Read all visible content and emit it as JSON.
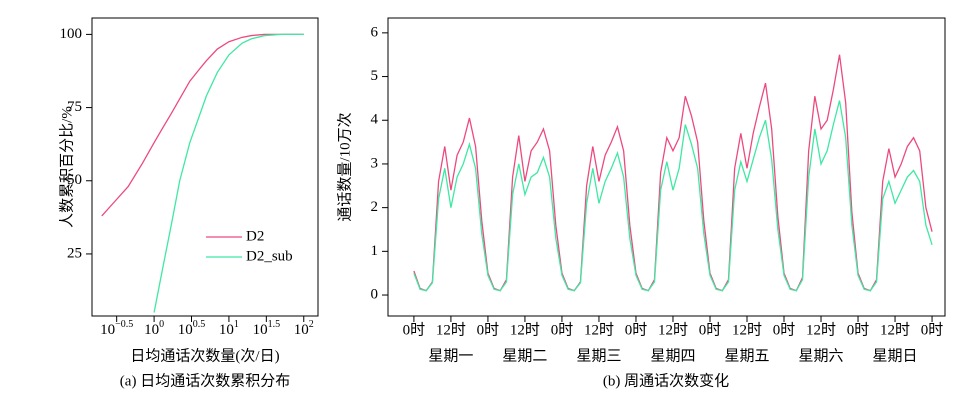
{
  "chart_data": [
    {
      "type": "line",
      "xscale": "log",
      "x_label": "日均通话次数量(次/日)",
      "y_label": "人数累积百分比/%",
      "caption": "(a) 日均通话次数累积分布",
      "x": [
        0.2,
        0.3,
        0.45,
        0.7,
        1,
        1.3,
        1.7,
        2.2,
        3,
        4,
        5,
        7,
        10,
        15,
        20,
        30,
        50,
        100
      ],
      "series": [
        {
          "name": "D2",
          "color": "#ec4a7e",
          "values": [
            38,
            43,
            48,
            56,
            63,
            68,
            73,
            78,
            84,
            88,
            91,
            95,
            97.5,
            99,
            99.6,
            100,
            100,
            100
          ]
        },
        {
          "name": "D2_sub",
          "color": "#3fe8a3",
          "values": [
            null,
            null,
            null,
            null,
            5,
            20,
            35,
            50,
            63,
            72,
            79,
            87,
            93,
            97,
            98.5,
            99.6,
            100,
            100
          ]
        }
      ],
      "xlim": [
        0.148,
        155
      ],
      "ylim": [
        3.8,
        105.6
      ],
      "xticks": [
        {
          "value": 0.3162,
          "label": "10^−0.5"
        },
        {
          "value": 1,
          "label": "10^0"
        },
        {
          "value": 3.162,
          "label": "10^0.5"
        },
        {
          "value": 10,
          "label": "10^1"
        },
        {
          "value": 31.62,
          "label": "10^1.5"
        },
        {
          "value": 100,
          "label": "10^2"
        }
      ],
      "yticks": [
        25,
        50,
        75,
        100
      ],
      "legend": "center right",
      "grid": false
    },
    {
      "type": "line",
      "y_label": "通话数量/10万次",
      "caption": "(b) 周通话次数变化",
      "x": [
        0,
        2,
        4,
        6,
        8,
        10,
        12,
        14,
        16,
        18,
        20,
        22,
        24,
        26,
        28,
        30,
        32,
        34,
        36,
        38,
        40,
        42,
        44,
        46,
        48,
        50,
        52,
        54,
        56,
        58,
        60,
        62,
        64,
        66,
        68,
        70,
        72,
        74,
        76,
        78,
        80,
        82,
        84,
        86,
        88,
        90,
        92,
        94,
        96,
        98,
        100,
        102,
        104,
        106,
        108,
        110,
        112,
        114,
        116,
        118,
        120,
        122,
        124,
        126,
        128,
        130,
        132,
        134,
        136,
        138,
        140,
        142,
        144,
        146,
        148,
        150,
        152,
        154,
        156,
        158,
        160,
        162,
        164,
        166,
        168
      ],
      "series": [
        {
          "name": "pink",
          "color": "#ec4a7e",
          "values": [
            0.55,
            0.15,
            0.1,
            0.3,
            2.6,
            3.4,
            2.4,
            3.2,
            3.5,
            4.05,
            3.4,
            1.7,
            0.5,
            0.15,
            0.1,
            0.35,
            2.7,
            3.65,
            2.6,
            3.3,
            3.5,
            3.8,
            3.3,
            1.6,
            0.5,
            0.15,
            0.1,
            0.3,
            2.5,
            3.4,
            2.6,
            3.2,
            3.5,
            3.85,
            3.3,
            1.6,
            0.5,
            0.15,
            0.1,
            0.35,
            2.8,
            3.6,
            3.3,
            3.6,
            4.55,
            4.1,
            3.5,
            1.7,
            0.5,
            0.15,
            0.1,
            0.35,
            2.9,
            3.7,
            2.9,
            3.7,
            4.3,
            4.85,
            3.8,
            1.8,
            0.5,
            0.15,
            0.1,
            0.4,
            3.3,
            4.55,
            3.8,
            4.0,
            4.7,
            5.5,
            4.4,
            1.9,
            0.5,
            0.15,
            0.1,
            0.35,
            2.6,
            3.35,
            2.7,
            3.0,
            3.4,
            3.6,
            3.3,
            2.0,
            1.45
          ]
        },
        {
          "name": "green",
          "color": "#3fe8a3",
          "values": [
            0.5,
            0.13,
            0.1,
            0.28,
            2.2,
            2.9,
            2.0,
            2.7,
            3.0,
            3.45,
            2.9,
            1.4,
            0.45,
            0.13,
            0.1,
            0.3,
            2.3,
            3.0,
            2.3,
            2.7,
            2.8,
            3.15,
            2.7,
            1.3,
            0.45,
            0.13,
            0.1,
            0.28,
            2.1,
            2.9,
            2.1,
            2.6,
            2.9,
            3.25,
            2.7,
            1.3,
            0.45,
            0.13,
            0.1,
            0.3,
            2.4,
            3.05,
            2.4,
            2.9,
            3.9,
            3.45,
            2.9,
            1.4,
            0.45,
            0.13,
            0.1,
            0.3,
            2.4,
            3.05,
            2.6,
            3.1,
            3.6,
            4.0,
            3.1,
            1.5,
            0.45,
            0.13,
            0.1,
            0.35,
            2.7,
            3.8,
            3.0,
            3.3,
            3.9,
            4.45,
            3.6,
            1.6,
            0.45,
            0.13,
            0.1,
            0.3,
            2.2,
            2.6,
            2.1,
            2.4,
            2.7,
            2.85,
            2.6,
            1.6,
            1.15
          ]
        }
      ],
      "xlim": [
        -8.4,
        172.2
      ],
      "ylim": [
        -0.48,
        6.34
      ],
      "xticks": [
        {
          "value": 0,
          "label": "0时"
        },
        {
          "value": 12,
          "label": "12时"
        },
        {
          "value": 24,
          "label": "0时"
        },
        {
          "value": 36,
          "label": "12时"
        },
        {
          "value": 48,
          "label": "0时"
        },
        {
          "value": 60,
          "label": "12时"
        },
        {
          "value": 72,
          "label": "0时"
        },
        {
          "value": 84,
          "label": "12时"
        },
        {
          "value": 96,
          "label": "0时"
        },
        {
          "value": 108,
          "label": "12时"
        },
        {
          "value": 120,
          "label": "0时"
        },
        {
          "value": 132,
          "label": "12时"
        },
        {
          "value": 144,
          "label": "0时"
        },
        {
          "value": 156,
          "label": "12时"
        },
        {
          "value": 168,
          "label": "0时"
        }
      ],
      "xticks2": [
        {
          "value": 12,
          "label": "星期一"
        },
        {
          "value": 36,
          "label": "星期二"
        },
        {
          "value": 60,
          "label": "星期三"
        },
        {
          "value": 84,
          "label": "星期四"
        },
        {
          "value": 108,
          "label": "星期五"
        },
        {
          "value": 132,
          "label": "星期六"
        },
        {
          "value": 156,
          "label": "星期日"
        }
      ],
      "yticks": [
        0,
        1,
        2,
        3,
        4,
        5,
        6
      ],
      "grid": false
    }
  ]
}
